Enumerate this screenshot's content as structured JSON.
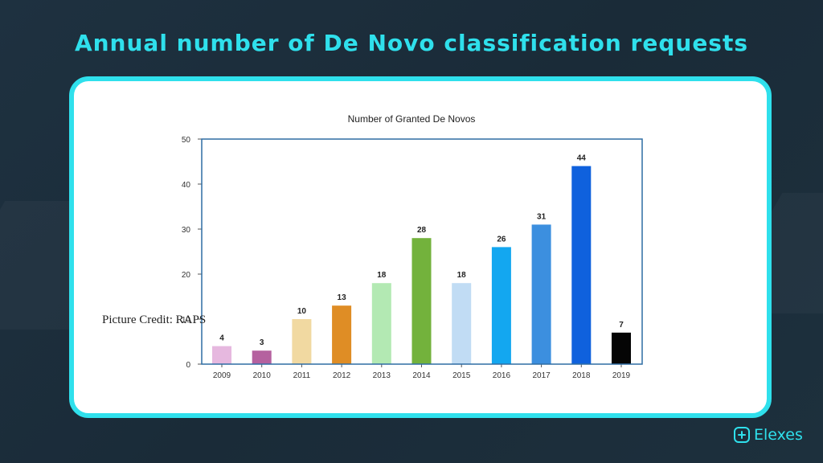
{
  "slide": {
    "title": "Annual number of De Novo classification requests",
    "credit": "Picture Credit: RAPS",
    "brand": "Elexes",
    "accent_color": "#2fe0ec"
  },
  "chart_data": {
    "type": "bar",
    "title": "Number of Granted De Novos",
    "xlabel": "",
    "ylabel": "",
    "ylim": [
      0,
      50
    ],
    "yticks": [
      0,
      10,
      20,
      30,
      40,
      50
    ],
    "grid": false,
    "categories": [
      "2009",
      "2010",
      "2011",
      "2012",
      "2013",
      "2014",
      "2015",
      "2016",
      "2017",
      "2018",
      "2019"
    ],
    "values": [
      4,
      3,
      10,
      13,
      18,
      28,
      18,
      26,
      31,
      44,
      7
    ],
    "data_labels": [
      "4",
      "3",
      "10",
      "13",
      "18",
      "28",
      "18",
      "26",
      "31",
      "44",
      "7"
    ],
    "colors": [
      "#e6b8df",
      "#b5619f",
      "#f1d9a1",
      "#df8d25",
      "#b3e9b3",
      "#73b23c",
      "#c1dcf4",
      "#13a7f0",
      "#3c8fdf",
      "#0f61dd",
      "#050505"
    ]
  }
}
